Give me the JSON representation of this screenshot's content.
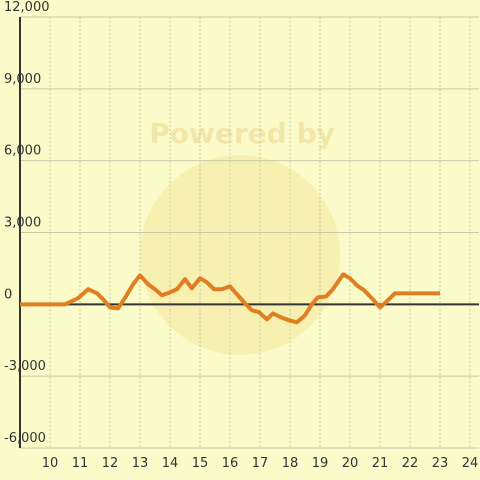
{
  "chart_data": {
    "type": "line",
    "watermark": "Powered by",
    "x": [
      9.0,
      10.5,
      10.93,
      11.27,
      11.57,
      11.8,
      12.0,
      12.27,
      12.53,
      12.77,
      13.0,
      13.27,
      13.5,
      13.73,
      14.0,
      14.23,
      14.5,
      14.73,
      15.0,
      15.23,
      15.47,
      15.73,
      16.0,
      16.23,
      16.5,
      16.73,
      16.97,
      17.23,
      17.43,
      17.7,
      17.97,
      18.23,
      18.5,
      18.73,
      18.93,
      19.2,
      19.43,
      19.77,
      20.0,
      20.23,
      20.47,
      20.73,
      21.0,
      21.23,
      21.5,
      23.0
    ],
    "series": [
      {
        "color": "#e07f22",
        "values": [
          0,
          0,
          250,
          630,
          460,
          170,
          -130,
          -170,
          330,
          840,
          1210,
          840,
          630,
          380,
          500,
          630,
          1050,
          670,
          1090,
          920,
          630,
          630,
          750,
          420,
          40,
          -250,
          -330,
          -630,
          -380,
          -540,
          -670,
          -750,
          -460,
          0,
          290,
          330,
          630,
          1250,
          1090,
          790,
          590,
          250,
          -130,
          130,
          460,
          460
        ]
      }
    ],
    "xlim": [
      9,
      24.3
    ],
    "xticks": [
      10,
      11,
      12,
      13,
      14,
      15,
      16,
      17,
      18,
      19,
      20,
      21,
      22,
      23,
      24
    ],
    "ylim": [
      -6000,
      12000
    ],
    "yticks": [
      {
        "value": -6000,
        "label": "-6,000"
      },
      {
        "value": -3000,
        "label": "-3,000"
      },
      0,
      {
        "value": 3000,
        "label": "3,000"
      },
      {
        "value": 6000,
        "label": "6,000"
      },
      {
        "value": 9000,
        "label": "9,000"
      },
      {
        "value": 12000,
        "label": "12,000"
      }
    ],
    "grid": true
  }
}
